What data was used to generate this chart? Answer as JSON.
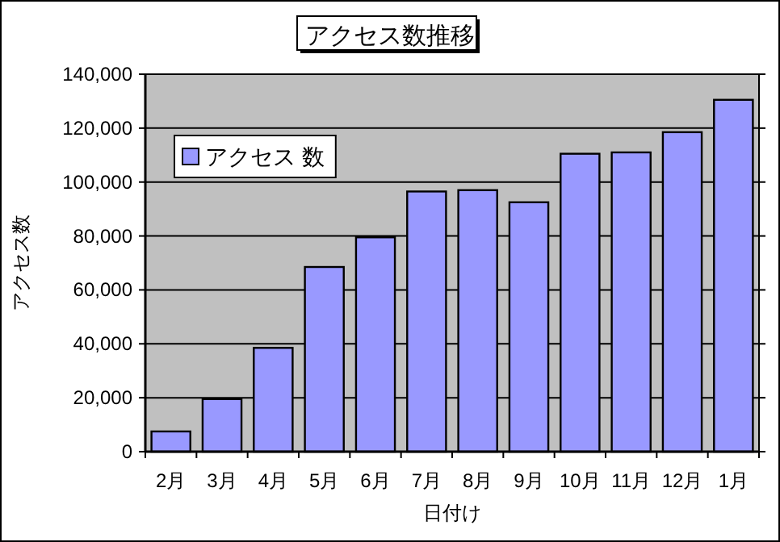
{
  "chart_data": {
    "type": "bar",
    "title": "アクセス数推移",
    "xlabel": "日付け",
    "ylabel": "アクセス数",
    "categories": [
      "2月",
      "3月",
      "4月",
      "5月",
      "6月",
      "7月",
      "8月",
      "9月",
      "10月",
      "11月",
      "12月",
      "1月"
    ],
    "series": [
      {
        "name": "アクセス 数",
        "color": "#9999ff",
        "values": [
          7500,
          19500,
          38500,
          68500,
          79500,
          96500,
          97000,
          92500,
          110500,
          111000,
          118500,
          130500
        ]
      }
    ],
    "ylim": [
      0,
      140000
    ],
    "yticks": [
      {
        "value": 0,
        "label": "0"
      },
      {
        "value": 20000,
        "label": "20,000"
      },
      {
        "value": 40000,
        "label": "40,000"
      },
      {
        "value": 60000,
        "label": "60,000"
      },
      {
        "value": 80000,
        "label": "80,000"
      },
      {
        "value": 100000,
        "label": "100,000"
      },
      {
        "value": 120000,
        "label": "120,000"
      },
      {
        "value": 140000,
        "label": "140,000"
      }
    ],
    "grid": "y",
    "legend": "top left"
  }
}
